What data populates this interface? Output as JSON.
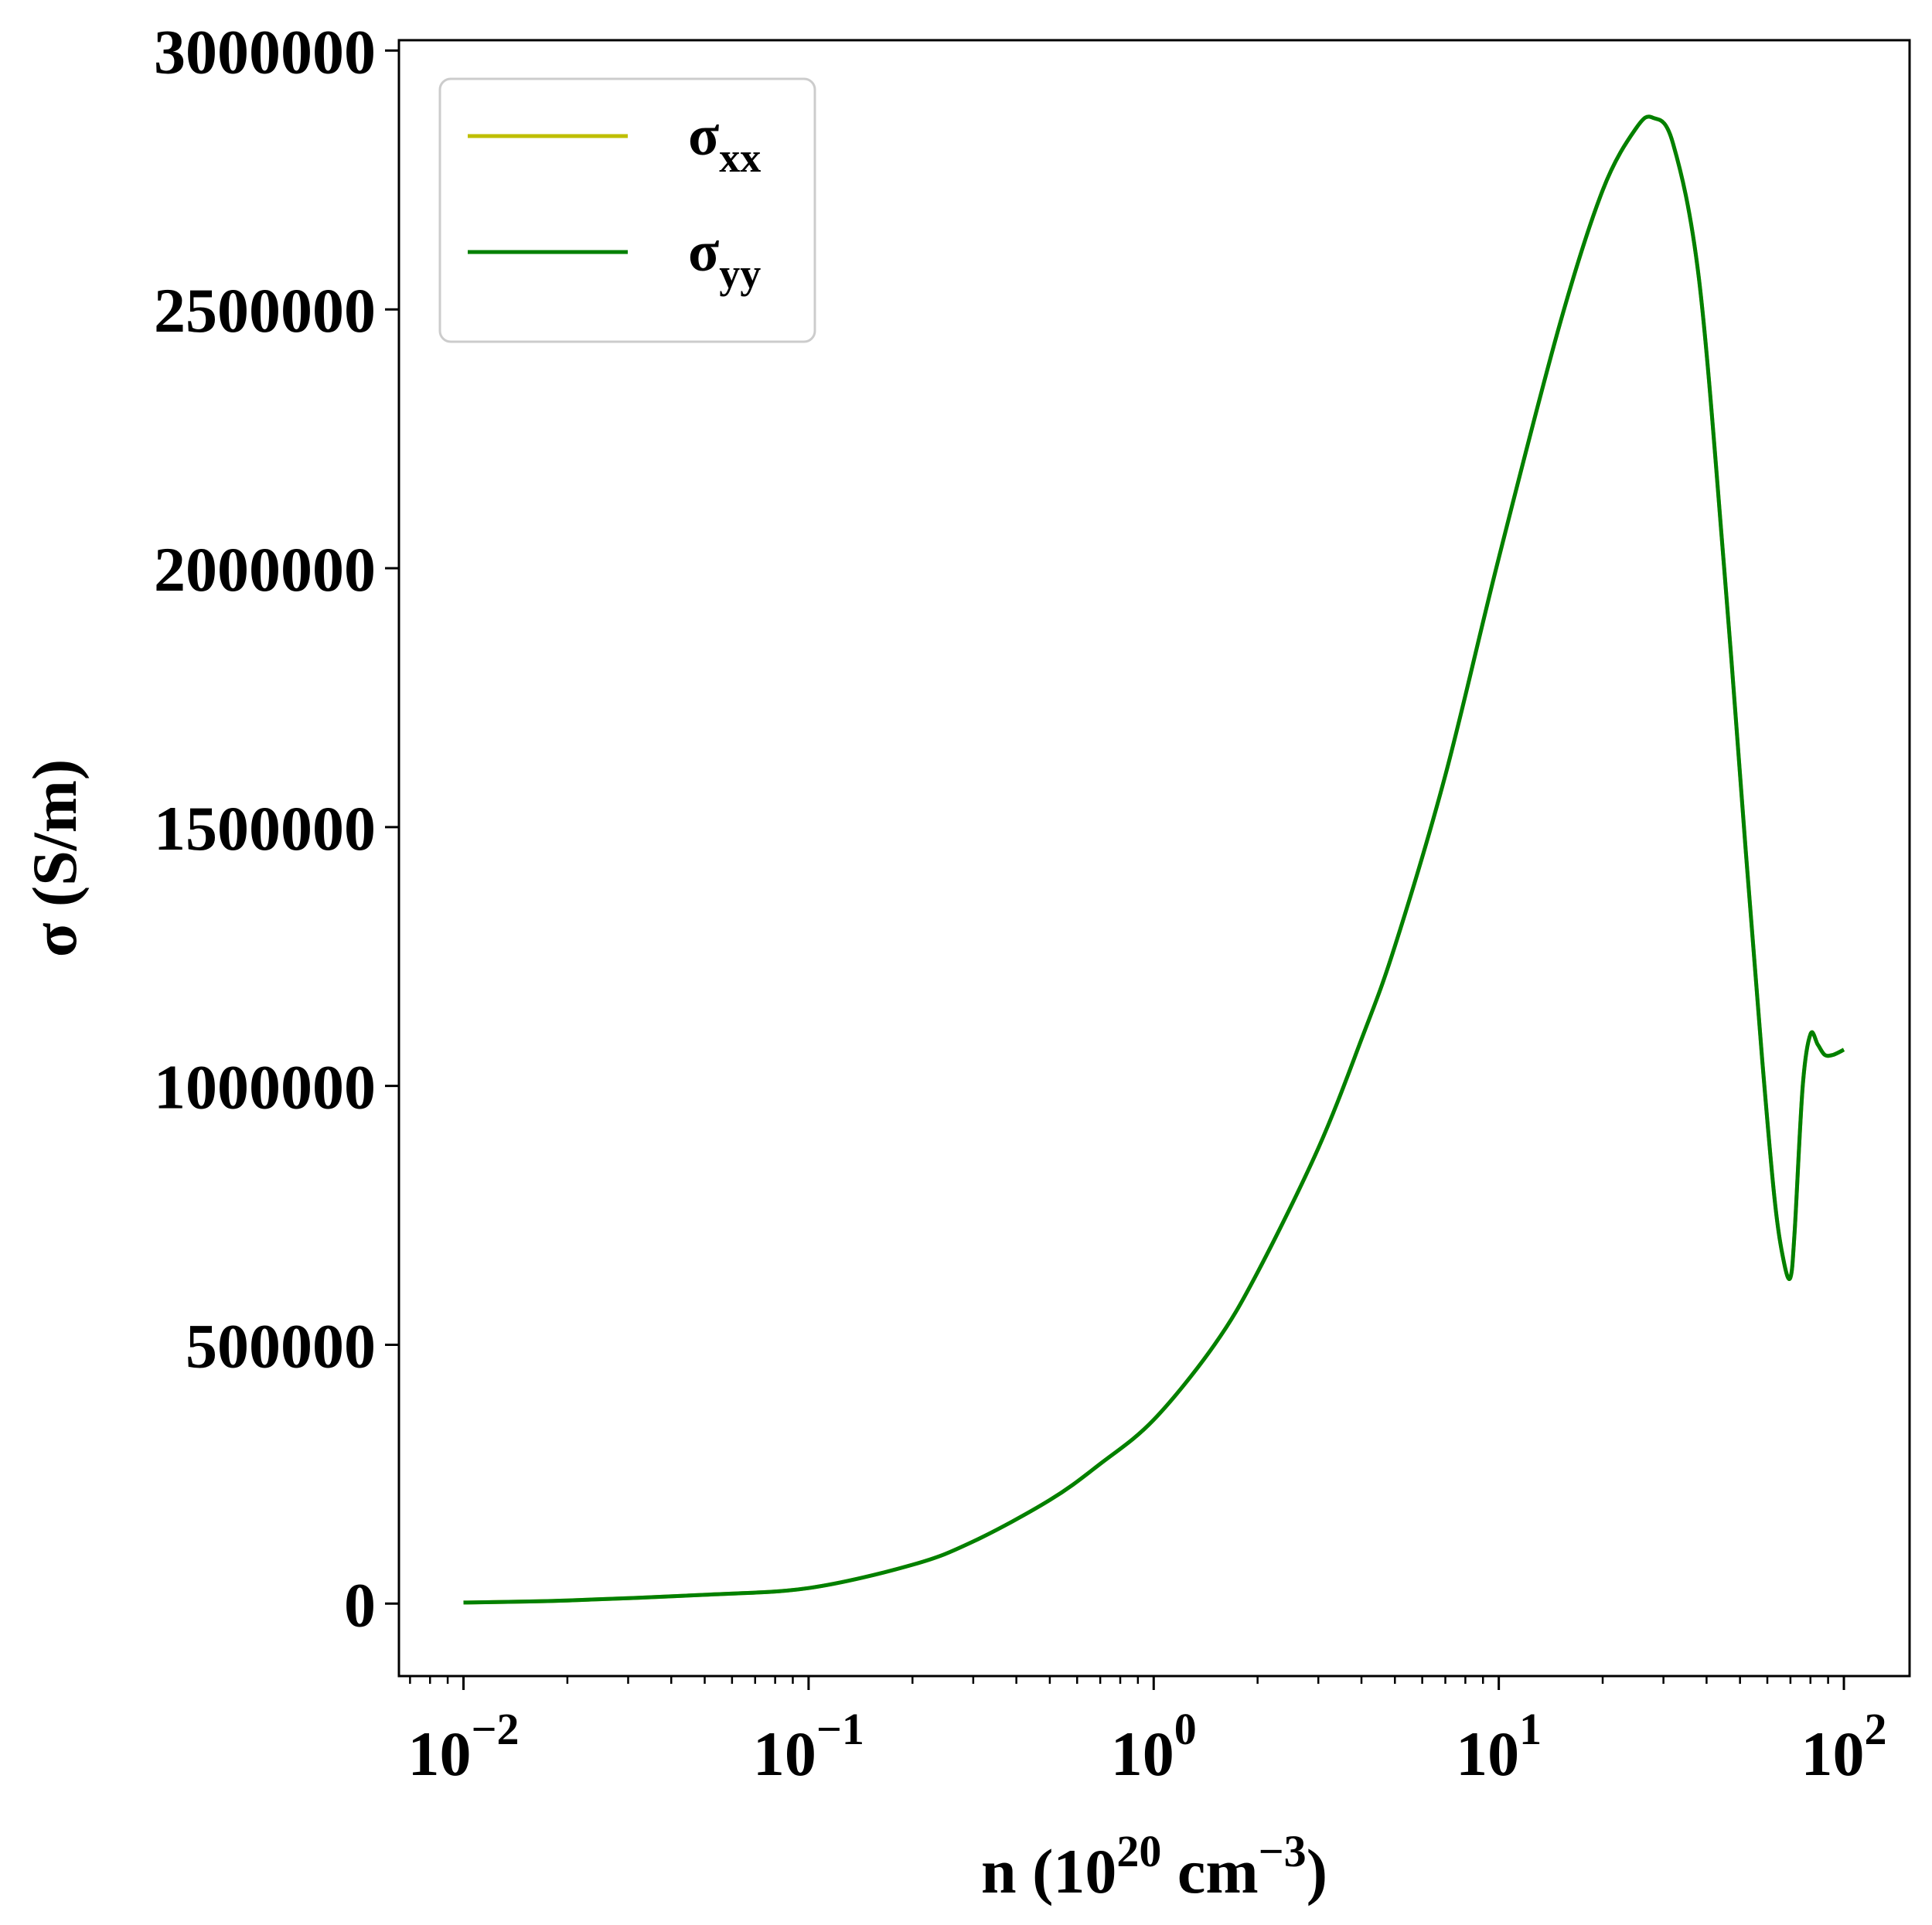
{
  "chart_data": {
    "type": "line",
    "title": "",
    "xlabel": "n (10^20 cm^-3)",
    "xlabel_parts": {
      "prefix": "n (10",
      "exp1": "20",
      "mid": " cm",
      "exp2": "−3",
      "suffix": ")"
    },
    "ylabel": "σ (S/m)",
    "x_scale": "log",
    "xlim": [
      0.0065,
      155
    ],
    "ylim": [
      -140000,
      3020000
    ],
    "grid": false,
    "legend_position": "top-left",
    "x_ticks": [
      {
        "value": 0.01,
        "base": "10",
        "exp": "−2"
      },
      {
        "value": 0.1,
        "base": "10",
        "exp": "−1"
      },
      {
        "value": 1,
        "base": "10",
        "exp": "0"
      },
      {
        "value": 10,
        "base": "10",
        "exp": "1"
      },
      {
        "value": 100,
        "base": "10",
        "exp": "2"
      }
    ],
    "y_ticks": [
      {
        "value": 0,
        "label": "0"
      },
      {
        "value": 500000,
        "label": "500000"
      },
      {
        "value": 1000000,
        "label": "1000000"
      },
      {
        "value": 1500000,
        "label": "1500000"
      },
      {
        "value": 2000000,
        "label": "2000000"
      },
      {
        "value": 2500000,
        "label": "2500000"
      },
      {
        "value": 3000000,
        "label": "3000000"
      }
    ],
    "series": [
      {
        "name": "σxx",
        "name_base": "σ",
        "name_sub": "xx",
        "color": "#bfbf00",
        "x": [
          0.01,
          0.02,
          0.05,
          0.1,
          0.2,
          0.3,
          0.5,
          0.7,
          1,
          1.5,
          2,
          3,
          4,
          5,
          7,
          10,
          15,
          20,
          25,
          28,
          32,
          38,
          45,
          52,
          58,
          63,
          67,
          70,
          72,
          76,
          80,
          84,
          88,
          93,
          100
        ],
        "y": [
          2000,
          6000,
          17000,
          30000,
          75000,
          120000,
          200000,
          270000,
          355000,
          500000,
          640000,
          880000,
          1090000,
          1270000,
          1600000,
          2020000,
          2470000,
          2730000,
          2850000,
          2870000,
          2820000,
          2560000,
          2000000,
          1450000,
          1050000,
          780000,
          660000,
          630000,
          720000,
          1000000,
          1100000,
          1080000,
          1060000,
          1060000,
          1070000
        ]
      },
      {
        "name": "σyy",
        "name_base": "σ",
        "name_sub": "yy",
        "color": "#008000",
        "x": [
          0.01,
          0.02,
          0.05,
          0.1,
          0.2,
          0.3,
          0.5,
          0.7,
          1,
          1.5,
          2,
          3,
          4,
          5,
          7,
          10,
          15,
          20,
          25,
          28,
          32,
          38,
          45,
          52,
          58,
          63,
          67,
          70,
          72,
          76,
          80,
          84,
          88,
          93,
          100
        ],
        "y": [
          2000,
          6000,
          17000,
          30000,
          75000,
          120000,
          200000,
          270000,
          355000,
          500000,
          640000,
          880000,
          1090000,
          1270000,
          1600000,
          2020000,
          2470000,
          2730000,
          2850000,
          2870000,
          2820000,
          2560000,
          2000000,
          1450000,
          1050000,
          780000,
          660000,
          630000,
          720000,
          1000000,
          1100000,
          1080000,
          1060000,
          1060000,
          1070000
        ]
      }
    ]
  }
}
